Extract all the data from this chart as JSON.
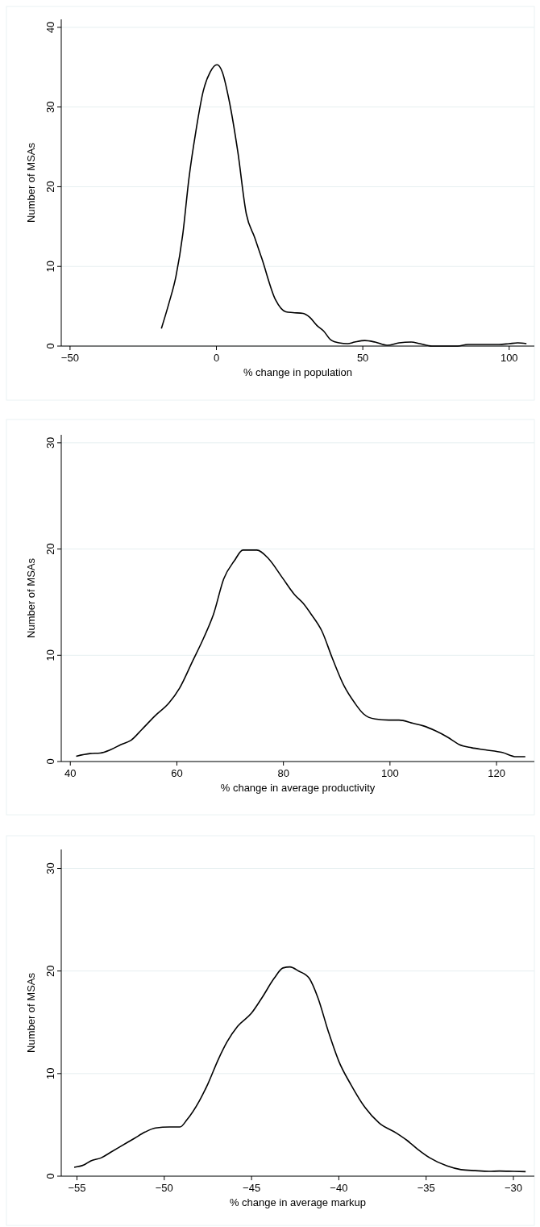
{
  "chart_data": [
    {
      "type": "line",
      "xlabel": "% change in population",
      "ylabel": "Number of MSAs",
      "xlim": [
        -53,
        108.6
      ],
      "xticks": [
        -50,
        0,
        50,
        100
      ],
      "ylim": [
        0,
        41
      ],
      "yticks": [
        0,
        10,
        20,
        30,
        40
      ],
      "grid": "y",
      "series": [
        {
          "color": "#000000",
          "x": [
            -18.8,
            -16.2,
            -13.8,
            -11.5,
            -9.4,
            -7.0,
            -4.5,
            -2.1,
            0.2,
            2.0,
            4.3,
            7.3,
            10.2,
            13.1,
            15.5,
            20.2,
            23.7,
            26.1,
            29.6,
            31.9,
            34.3,
            36.6,
            39.0,
            41.9,
            44.8,
            47.2,
            50.7,
            54.2,
            58.3,
            62.4,
            66.5,
            69.5,
            73.6,
            82.4,
            85.9,
            89.4,
            93.0,
            96.5,
            100.0,
            102.9,
            105.9
          ],
          "values": [
            2.2,
            5.4,
            8.8,
            14.0,
            21.0,
            27.0,
            32.0,
            34.4,
            35.3,
            34.4,
            30.9,
            24.4,
            16.6,
            13.6,
            11.0,
            5.8,
            4.3,
            4.2,
            4.1,
            3.6,
            2.6,
            1.9,
            0.8,
            0.4,
            0.3,
            0.5,
            0.7,
            0.5,
            0.1,
            0.4,
            0.5,
            0.3,
            0,
            0,
            0.2,
            0.2,
            0.2,
            0.2,
            0.3,
            0.4,
            0.3
          ]
        }
      ]
    },
    {
      "type": "line",
      "xlabel": "% change in average productivity",
      "ylabel": "Number of MSAs",
      "xlim": [
        38.3,
        127.1
      ],
      "xticks": [
        40,
        60,
        80,
        100,
        120
      ],
      "ylim": [
        0,
        30.75
      ],
      "yticks": [
        0,
        10,
        20,
        30
      ],
      "grid": "y",
      "series": [
        {
          "color": "#000000",
          "x": [
            41.1,
            43.7,
            45.6,
            47.5,
            49.5,
            51.4,
            53.4,
            55.9,
            58.5,
            60.5,
            63.0,
            65.0,
            66.9,
            68.8,
            70.8,
            72.4,
            73.7,
            75.0,
            77.2,
            79.8,
            82.1,
            83.7,
            85.3,
            87.2,
            89.2,
            91.4,
            93.4,
            95.0,
            97.2,
            99.8,
            101.7,
            104.3,
            106.3,
            108.5,
            110.8,
            113.0,
            115.3,
            117.9,
            121.1,
            123.7,
            125.4
          ],
          "values": [
            0.5,
            0.75,
            0.8,
            1.1,
            1.6,
            2.0,
            3.0,
            4.3,
            5.5,
            6.9,
            9.5,
            11.6,
            13.9,
            17.2,
            18.9,
            19.9,
            19.9,
            19.9,
            19.1,
            17.3,
            15.7,
            14.9,
            13.8,
            12.3,
            9.7,
            7.1,
            5.5,
            4.5,
            4.0,
            3.9,
            3.9,
            3.6,
            3.35,
            2.9,
            2.3,
            1.6,
            1.3,
            1.1,
            0.85,
            0.45,
            0.45
          ]
        }
      ]
    },
    {
      "type": "line",
      "xlabel": "% change in average markup",
      "ylabel": "Number of MSAs",
      "xlim": [
        -55.9,
        -28.8
      ],
      "xticks": [
        -55,
        -50,
        -45,
        -40,
        -35,
        -30
      ],
      "ylim": [
        0,
        31.85
      ],
      "yticks": [
        0,
        10,
        20,
        30
      ],
      "grid": "y",
      "series": [
        {
          "color": "#000000",
          "x": [
            -55.16,
            -54.6,
            -54.2,
            -53.6,
            -53.1,
            -52.6,
            -52.1,
            -51.7,
            -51.1,
            -50.5,
            -49.7,
            -49.1,
            -48.7,
            -48.0,
            -47.5,
            -46.9,
            -46.4,
            -45.8,
            -45.0,
            -44.4,
            -43.7,
            -43.2,
            -42.8,
            -42.3,
            -41.7,
            -41.2,
            -40.6,
            -40.0,
            -39.3,
            -38.5,
            -37.7,
            -36.7,
            -36.1,
            -35.5,
            -34.8,
            -33.8,
            -33.0,
            -32.2,
            -31.4,
            -30.8,
            -30.0,
            -29.3
          ],
          "values": [
            0.87,
            1.1,
            1.5,
            1.8,
            2.3,
            2.8,
            3.3,
            3.7,
            4.3,
            4.7,
            4.8,
            4.8,
            5.5,
            7.3,
            9.0,
            11.4,
            13.1,
            14.6,
            15.9,
            17.4,
            19.3,
            20.3,
            20.4,
            20.0,
            19.3,
            17.4,
            14.1,
            11.2,
            8.9,
            6.7,
            5.2,
            4.2,
            3.5,
            2.65,
            1.8,
            1.0,
            0.64,
            0.54,
            0.47,
            0.5,
            0.47,
            0.44
          ]
        }
      ]
    }
  ]
}
